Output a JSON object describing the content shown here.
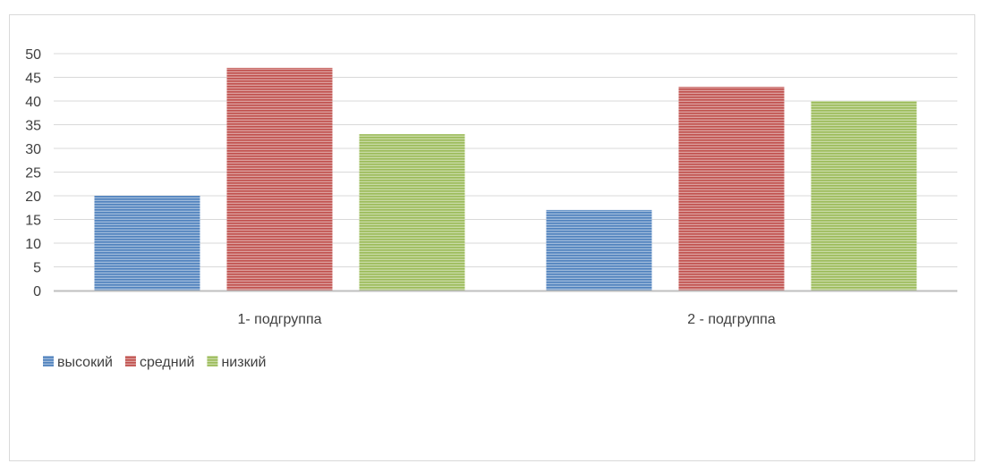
{
  "chart_data": {
    "type": "bar",
    "title": "",
    "xlabel": "",
    "ylabel": "",
    "categories": [
      "1- подгруппа",
      "2 - подгруппа"
    ],
    "series": [
      {
        "name": "высокий",
        "values": [
          20,
          17
        ],
        "color": "#4f81bd"
      },
      {
        "name": "средний",
        "values": [
          47,
          43
        ],
        "color": "#c0504d"
      },
      {
        "name": "низкий",
        "values": [
          33,
          40
        ],
        "color": "#9bbb59"
      }
    ],
    "ylim": [
      0,
      50
    ],
    "yticks": [
      "0",
      "5",
      "10",
      "15",
      "20",
      "25",
      "30",
      "35",
      "40",
      "45",
      "50"
    ],
    "grid": true,
    "legend_position": "bottom-left",
    "bar_pattern": "horizontal-stripes"
  }
}
